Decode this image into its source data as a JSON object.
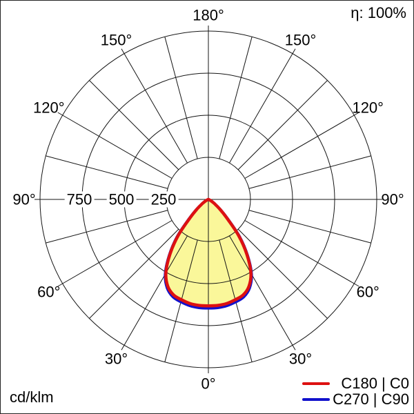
{
  "chart_data": {
    "type": "polar",
    "subtype": "luminous-intensity-distribution",
    "units_label": "cd/klm",
    "efficiency_label": "η: 100%",
    "grid_color": "#141414",
    "fill_color": "#faf79a",
    "legend_position": "bottom-right",
    "radial_axis": {
      "max": 1000,
      "ticks": [
        250,
        500,
        750
      ],
      "tick_labels": [
        "250",
        "500",
        "750"
      ],
      "units": "cd/klm"
    },
    "angle_step_minor_deg": 15,
    "angle_labels": [
      {
        "value": 0,
        "label": "0°"
      },
      {
        "value": 30,
        "label": "30°"
      },
      {
        "value": 60,
        "label": "60°"
      },
      {
        "value": 90,
        "label": "90°"
      },
      {
        "value": 120,
        "label": "120°"
      },
      {
        "value": 150,
        "label": "150°"
      },
      {
        "value": 180,
        "label": "180°"
      }
    ],
    "series": [
      {
        "name": "C180 | C0",
        "color": "#dd1111",
        "gamma_deg": [
          0,
          5,
          10,
          15,
          20,
          25,
          30,
          35,
          40,
          45,
          50,
          55,
          60,
          65,
          70,
          75,
          80,
          85,
          90
        ],
        "values_cd_per_klm": [
          632,
          632,
          628,
          617,
          604,
          570,
          505,
          398,
          278,
          152,
          85,
          45,
          22,
          10,
          4,
          2,
          1,
          0,
          0
        ]
      },
      {
        "name": "C270 | C90",
        "color": "#1111cc",
        "gamma_deg": [
          0,
          5,
          10,
          15,
          20,
          25,
          30,
          35,
          40,
          45,
          50,
          55,
          60,
          65,
          70,
          75,
          80,
          85,
          90
        ],
        "values_cd_per_klm": [
          646,
          646,
          641,
          630,
          616,
          580,
          513,
          406,
          288,
          162,
          92,
          49,
          24,
          11,
          5,
          2,
          1,
          0,
          0
        ]
      }
    ]
  }
}
